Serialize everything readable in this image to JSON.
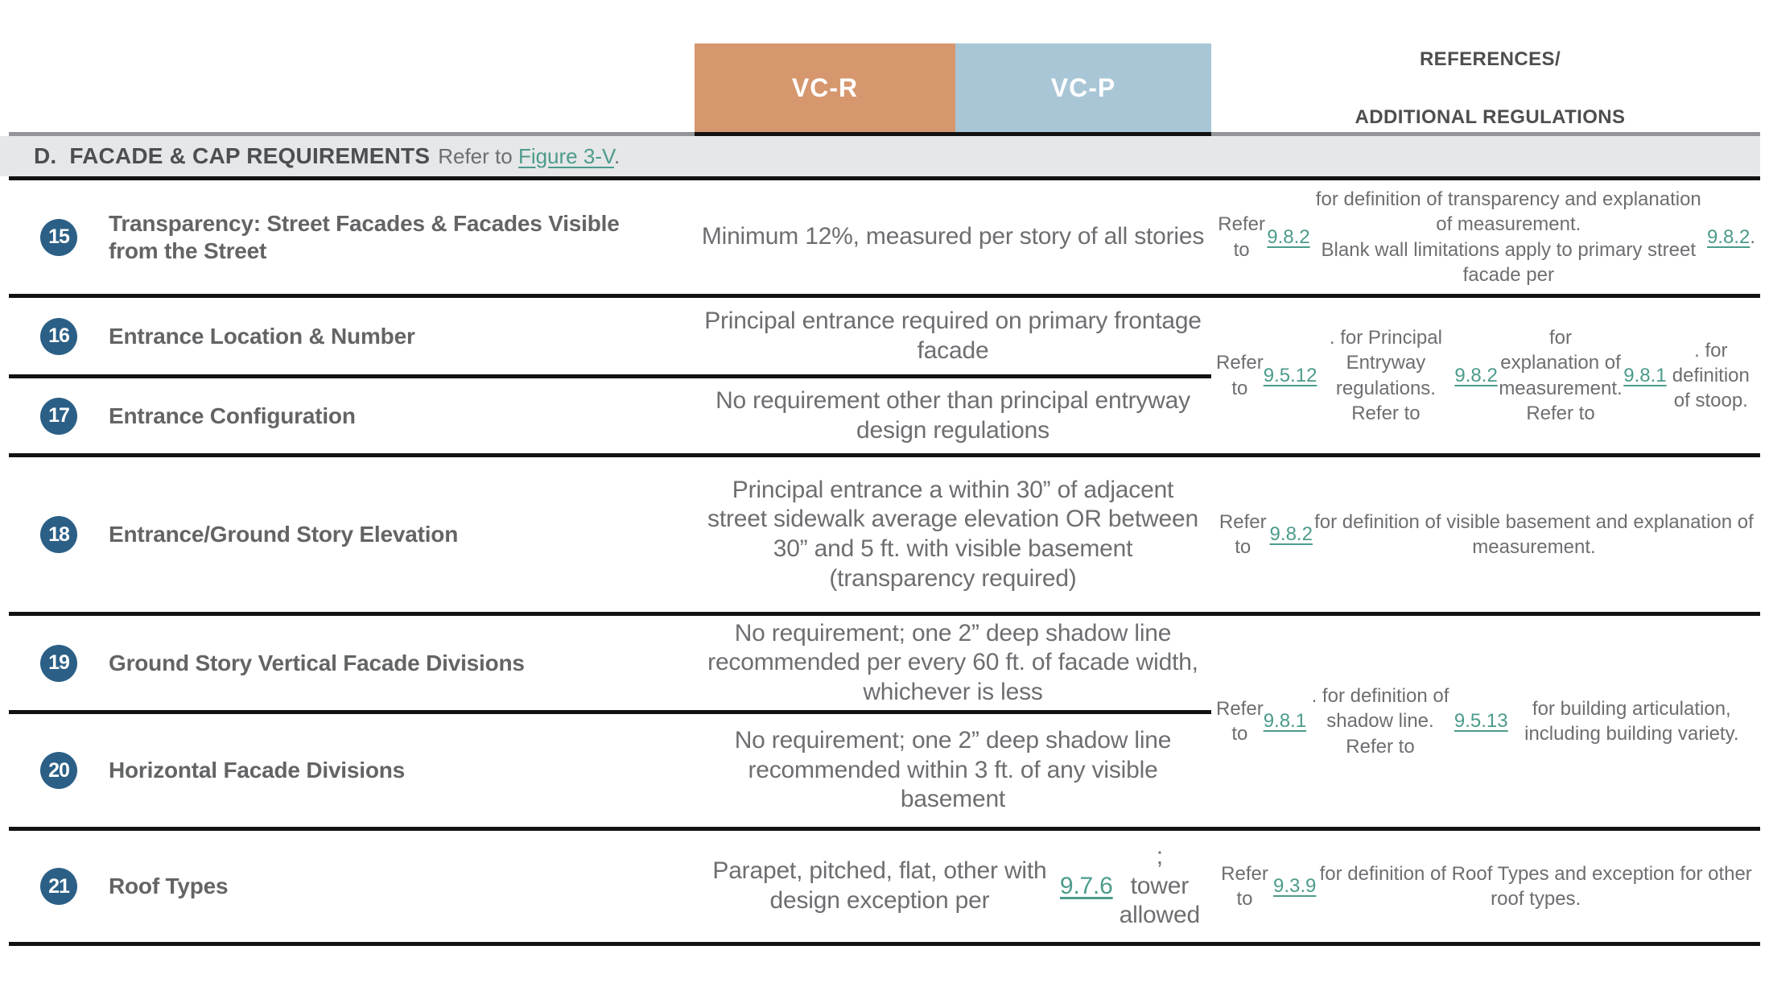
{
  "colors": {
    "vcr": "#D6976E",
    "vcp": "#A9C6D6",
    "link": "#4C9B8C",
    "circle": "#2B5F86",
    "band": "#E6E7E8",
    "text": "#6D6E71",
    "heading": "#4D4E50"
  },
  "header": {
    "vcr": "VC-R",
    "vcp": "VC-P",
    "refs_line1": "REFERENCES/",
    "refs_line2": "ADDITIONAL REGULATIONS"
  },
  "section": {
    "title": "D.  FACADE & CAP REQUIREMENTS",
    "refer": [
      {
        "t": "Refer to "
      },
      {
        "t": "Figure 3-V",
        "link": true
      },
      {
        "t": "."
      }
    ]
  },
  "rows": [
    {
      "num": "15",
      "label": "Transparency: Street Facades & Facades Visible from the Street",
      "requirement": [
        {
          "t": "Minimum 12%, measured per story of all stories"
        }
      ],
      "refs": [
        {
          "t": "Refer to "
        },
        {
          "t": "9.8.2",
          "link": true
        },
        {
          "t": " for definition of transparency and explanation of measurement.\nBlank wall limitations apply to primary street facade per "
        },
        {
          "t": "9.8.2",
          "link": true
        },
        {
          "t": "."
        }
      ]
    },
    {
      "num": "16",
      "label": "Entrance Location & Number",
      "requirement": [
        {
          "t": "Principal entrance required on primary frontage facade"
        }
      ]
    },
    {
      "num": "17",
      "label": "Entrance Configuration",
      "requirement": [
        {
          "t": "No requirement other than principal entryway design regulations"
        }
      ]
    },
    {
      "num": "18",
      "label": "Entrance/Ground Story Elevation",
      "requirement": [
        {
          "t": "Principal entrance a within 30” of adjacent street sidewalk average elevation OR between 30” and 5 ft. with visible basement (transparency required)"
        }
      ],
      "refs": [
        {
          "t": "Refer to "
        },
        {
          "t": "9.8.2",
          "link": true
        },
        {
          "t": " for definition of visible basement and explanation of measurement."
        }
      ]
    },
    {
      "num": "19",
      "label": "Ground Story Vertical Facade Divisions",
      "requirement": [
        {
          "t": "No requirement; one 2” deep shadow line recommended per every 60 ft. of facade width, whichever is less"
        }
      ]
    },
    {
      "num": "20",
      "label": "Horizontal Facade Divisions",
      "requirement": [
        {
          "t": "No requirement; one 2” deep shadow line recommended within 3 ft. of any visible basement"
        }
      ]
    },
    {
      "num": "21",
      "label": "Roof Types",
      "requirement": [
        {
          "t": "Parapet, pitched, flat, other with design exception per "
        },
        {
          "t": "9.7.6",
          "link": true
        },
        {
          "t": ";\ntower allowed"
        }
      ],
      "refs": [
        {
          "t": "Refer to "
        },
        {
          "t": "9.3.9",
          "link": true
        },
        {
          "t": " for definition of Roof Types and exception for other roof types."
        }
      ]
    }
  ],
  "shared_refs": {
    "rows_16_17": [
      {
        "t": "Refer to "
      },
      {
        "t": "9.5.12",
        "link": true
      },
      {
        "t": ". for Principal Entryway regulations.\nRefer to "
      },
      {
        "t": "9.8.2",
        "link": true
      },
      {
        "t": " for explanation of measurement.\nRefer to "
      },
      {
        "t": "9.8.1",
        "link": true
      },
      {
        "t": ". for definition of stoop."
      }
    ],
    "rows_19_20": [
      {
        "t": "Refer to "
      },
      {
        "t": "9.8.1",
        "link": true
      },
      {
        "t": ". for definition of shadow line.\nRefer to "
      },
      {
        "t": "9.5.13",
        "link": true
      },
      {
        "t": " for building articulation, including building variety."
      }
    ]
  }
}
